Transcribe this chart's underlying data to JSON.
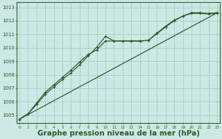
{
  "background_color": "#cce8e4",
  "grid_color": "#a8d0cc",
  "line_color": "#2d5a27",
  "xlabel": "Graphe pression niveau de la mer (hPa)",
  "xlabel_fontsize": 7.5,
  "ylim": [
    1004.4,
    1013.4
  ],
  "xlim": [
    -0.3,
    23.3
  ],
  "yticks": [
    1005,
    1006,
    1007,
    1008,
    1009,
    1010,
    1011,
    1012,
    1013
  ],
  "xticks": [
    0,
    1,
    2,
    3,
    4,
    5,
    6,
    7,
    8,
    9,
    10,
    11,
    12,
    13,
    14,
    15,
    16,
    17,
    18,
    19,
    20,
    21,
    22,
    23
  ],
  "series_straight": {
    "x": [
      0,
      23
    ],
    "y": [
      1004.7,
      1012.6
    ]
  },
  "series_marked1": {
    "x": [
      0,
      1,
      2,
      3,
      4,
      5,
      6,
      7,
      8,
      9,
      10,
      11,
      12,
      13,
      14,
      15,
      16,
      17,
      18,
      19,
      20,
      21,
      22,
      23
    ],
    "y": [
      1004.7,
      1005.1,
      1005.8,
      1006.55,
      1007.1,
      1007.65,
      1008.15,
      1008.75,
      1009.4,
      1010.05,
      1010.85,
      1010.5,
      1010.5,
      1010.5,
      1010.5,
      1010.55,
      1011.05,
      1011.55,
      1012.0,
      1012.35,
      1012.55,
      1012.55,
      1012.5,
      1012.55
    ]
  },
  "series_marked2": {
    "x": [
      0,
      1,
      2,
      3,
      4,
      5,
      6,
      7,
      8,
      9,
      10,
      11,
      12,
      13,
      14,
      15,
      16,
      17,
      18,
      19,
      20,
      21,
      22,
      23
    ],
    "y": [
      1004.7,
      1005.1,
      1005.9,
      1006.7,
      1007.25,
      1007.8,
      1008.35,
      1008.95,
      1009.5,
      1009.85,
      1010.5,
      1010.5,
      1010.5,
      1010.5,
      1010.5,
      1010.55,
      1011.1,
      1011.6,
      1012.05,
      1012.35,
      1012.6,
      1012.6,
      1012.55,
      1012.6
    ]
  }
}
